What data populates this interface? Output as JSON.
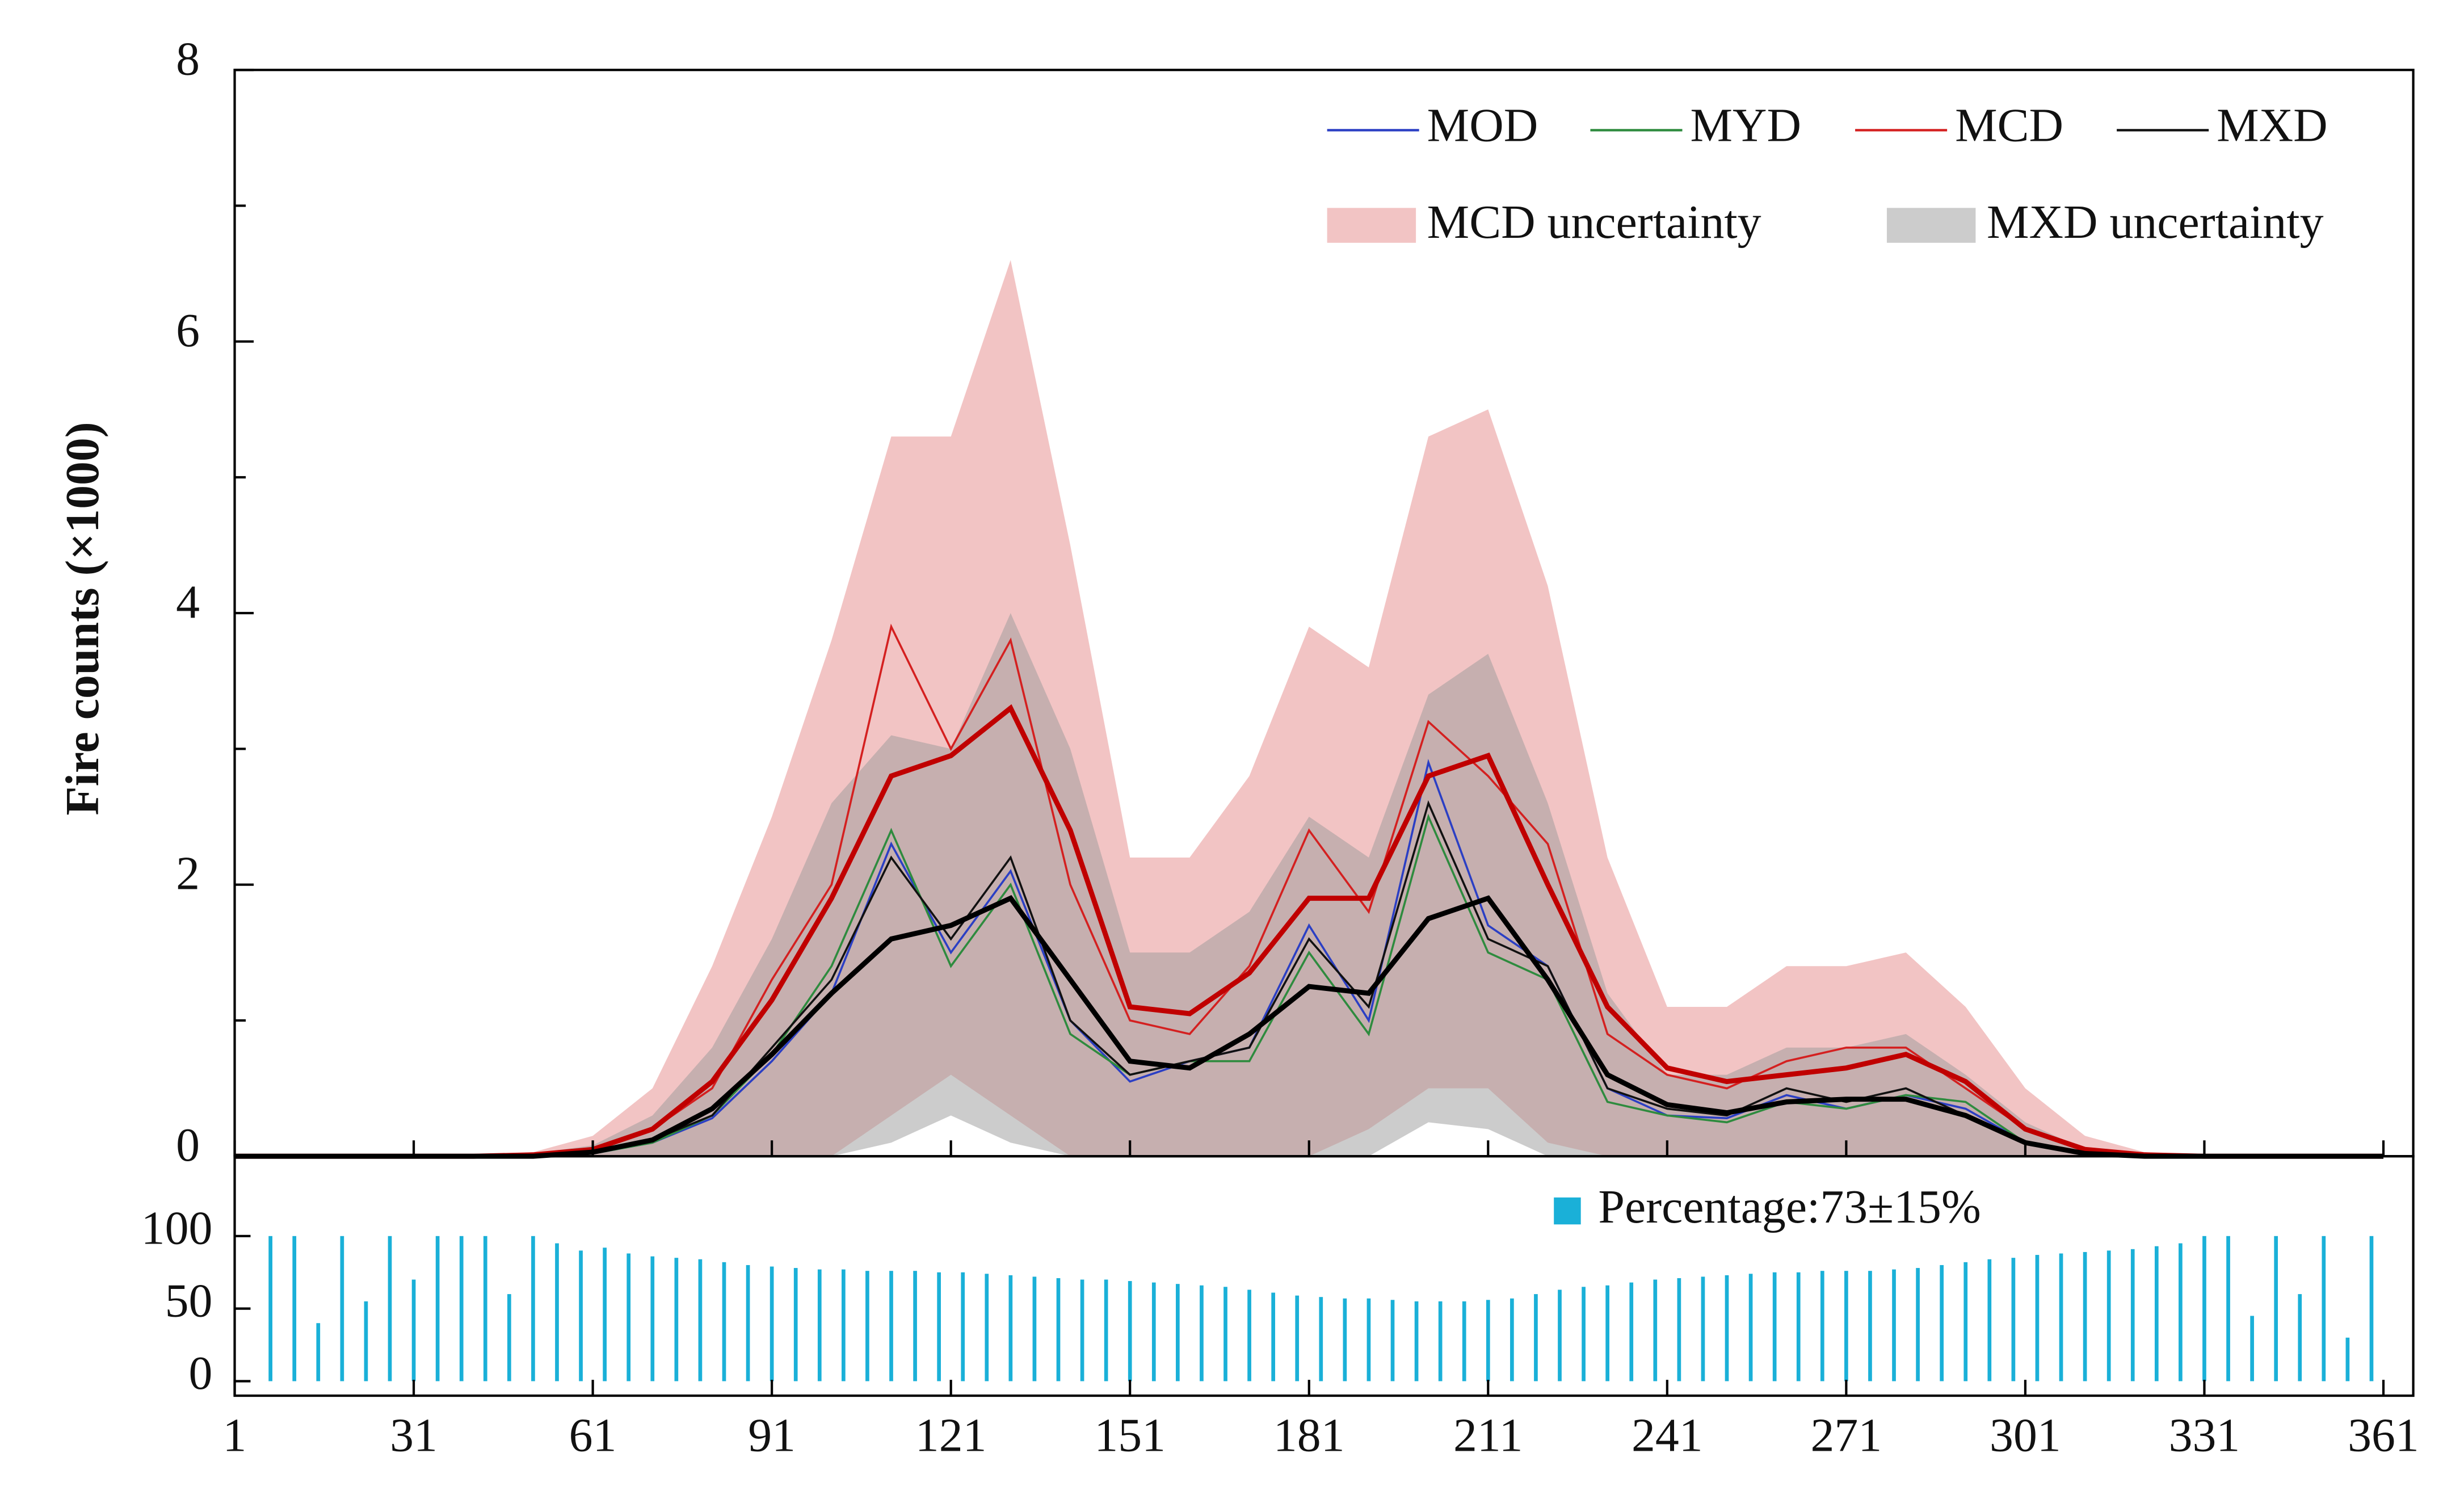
{
  "chart_data": [
    {
      "type": "line",
      "ylabel": "Fire counts (×1000)",
      "xlim": [
        1,
        366
      ],
      "ylim": [
        0,
        8
      ],
      "xticks": [
        1,
        31,
        61,
        91,
        121,
        151,
        181,
        211,
        241,
        271,
        301,
        331,
        361
      ],
      "yticks": [
        0,
        2,
        4,
        6,
        8
      ],
      "yminorticks": [
        1,
        3,
        5,
        7
      ],
      "x": [
        1,
        11,
        21,
        31,
        41,
        51,
        61,
        71,
        81,
        91,
        101,
        111,
        121,
        131,
        141,
        151,
        161,
        171,
        181,
        191,
        201,
        211,
        221,
        231,
        241,
        251,
        261,
        271,
        281,
        291,
        301,
        311,
        321,
        331,
        341,
        351,
        361
      ],
      "bands": [
        {
          "name": "MCD uncertainty",
          "color": "#f2c4c4",
          "upper": [
            0,
            0,
            0,
            0,
            0,
            0.03,
            0.15,
            0.5,
            1.4,
            2.5,
            3.8,
            5.3,
            5.3,
            6.6,
            4.5,
            2.2,
            2.2,
            2.8,
            3.9,
            3.6,
            5.3,
            5.5,
            4.2,
            2.2,
            1.1,
            1.1,
            1.4,
            1.4,
            1.5,
            1.1,
            0.5,
            0.15,
            0.03,
            0,
            0,
            0,
            0
          ],
          "lower": [
            0,
            0,
            0,
            0,
            0,
            0,
            0,
            0,
            0,
            0,
            0,
            0.3,
            0.6,
            0.3,
            0,
            0,
            0,
            0,
            0,
            0.2,
            0.5,
            0.5,
            0.1,
            0,
            0,
            0,
            0,
            0,
            0,
            0,
            0,
            0,
            0,
            0,
            0,
            0,
            0
          ]
        },
        {
          "name": "MXD uncertainty",
          "color": "#9a9a9a",
          "upper": [
            0,
            0,
            0,
            0,
            0,
            0.02,
            0.08,
            0.3,
            0.8,
            1.6,
            2.6,
            3.1,
            3.0,
            4.0,
            3.0,
            1.5,
            1.5,
            1.8,
            2.5,
            2.2,
            3.4,
            3.7,
            2.6,
            1.2,
            0.6,
            0.6,
            0.8,
            0.8,
            0.9,
            0.6,
            0.25,
            0.05,
            0.01,
            0,
            0,
            0,
            0
          ],
          "lower": [
            0,
            0,
            0,
            0,
            0,
            0,
            0,
            0,
            0,
            0,
            0,
            0.1,
            0.3,
            0.1,
            0,
            0,
            0,
            0,
            0,
            0,
            0.25,
            0.2,
            0,
            0,
            0,
            0,
            0,
            0,
            0,
            0,
            0,
            0,
            0,
            0,
            0,
            0,
            0
          ]
        }
      ],
      "series": [
        {
          "name": "MOD",
          "color": "#2b3fc4",
          "values": [
            0,
            0,
            0,
            0,
            0,
            0,
            0.02,
            0.1,
            0.28,
            0.7,
            1.2,
            2.3,
            1.5,
            2.1,
            1.0,
            0.55,
            0.7,
            0.8,
            1.7,
            1.0,
            2.9,
            1.7,
            1.4,
            0.5,
            0.3,
            0.28,
            0.45,
            0.35,
            0.45,
            0.35,
            0.1,
            0.02,
            0,
            0,
            0,
            0,
            0
          ]
        },
        {
          "name": "MYD",
          "color": "#2e8b3e",
          "values": [
            0,
            0,
            0,
            0,
            0,
            0,
            0.02,
            0.1,
            0.3,
            0.75,
            1.4,
            2.4,
            1.4,
            2.0,
            0.9,
            0.6,
            0.7,
            0.7,
            1.5,
            0.9,
            2.5,
            1.5,
            1.3,
            0.4,
            0.3,
            0.25,
            0.4,
            0.35,
            0.45,
            0.4,
            0.1,
            0.02,
            0,
            0,
            0,
            0,
            0
          ]
        },
        {
          "name": "MCD",
          "color": "#d42020",
          "values": [
            0,
            0,
            0,
            0,
            0,
            0.01,
            0.05,
            0.2,
            0.5,
            1.3,
            2.0,
            3.9,
            3.0,
            3.8,
            2.0,
            1.0,
            0.9,
            1.4,
            2.4,
            1.8,
            3.2,
            2.8,
            2.3,
            0.9,
            0.6,
            0.5,
            0.7,
            0.8,
            0.8,
            0.5,
            0.2,
            0.05,
            0.01,
            0,
            0,
            0,
            0
          ]
        },
        {
          "name": "MXD",
          "color": "#111111",
          "values": [
            0,
            0,
            0,
            0,
            0,
            0,
            0.03,
            0.12,
            0.3,
            0.8,
            1.3,
            2.2,
            1.6,
            2.2,
            1.0,
            0.6,
            0.7,
            0.8,
            1.6,
            1.1,
            2.6,
            1.6,
            1.4,
            0.5,
            0.35,
            0.3,
            0.5,
            0.4,
            0.5,
            0.3,
            0.1,
            0.02,
            0,
            0,
            0,
            0,
            0
          ]
        }
      ],
      "smoothed": [
        {
          "color": "#c00000",
          "values": [
            0,
            0,
            0,
            0,
            0,
            0.01,
            0.05,
            0.2,
            0.55,
            1.15,
            1.9,
            2.8,
            2.95,
            3.3,
            2.4,
            1.1,
            1.05,
            1.35,
            1.9,
            1.9,
            2.8,
            2.95,
            2.0,
            1.1,
            0.65,
            0.55,
            0.6,
            0.65,
            0.75,
            0.55,
            0.2,
            0.05,
            0.01,
            0,
            0,
            0,
            0
          ]
        },
        {
          "color": "#000000",
          "values": [
            0,
            0,
            0,
            0,
            0,
            0,
            0.03,
            0.12,
            0.35,
            0.75,
            1.2,
            1.6,
            1.7,
            1.9,
            1.3,
            0.7,
            0.65,
            0.9,
            1.25,
            1.2,
            1.75,
            1.9,
            1.3,
            0.6,
            0.38,
            0.32,
            0.4,
            0.42,
            0.42,
            0.3,
            0.1,
            0.02,
            0,
            0,
            0,
            0,
            0
          ]
        }
      ]
    },
    {
      "type": "bar",
      "legend": "Percentage:73±15%",
      "color": "#1ab0d8",
      "xlim": [
        1,
        366
      ],
      "ylim": [
        -10,
        155
      ],
      "xticks": [
        1,
        31,
        61,
        91,
        121,
        151,
        181,
        211,
        241,
        271,
        301,
        331,
        361
      ],
      "yticks": [
        0,
        50,
        100
      ],
      "x": [
        7,
        11,
        15,
        19,
        23,
        27,
        31,
        35,
        39,
        43,
        47,
        51,
        55,
        59,
        63,
        67,
        71,
        75,
        79,
        83,
        87,
        91,
        95,
        99,
        103,
        107,
        111,
        115,
        119,
        123,
        127,
        131,
        135,
        139,
        143,
        147,
        151,
        155,
        159,
        163,
        167,
        171,
        175,
        179,
        183,
        187,
        191,
        195,
        199,
        203,
        207,
        211,
        215,
        219,
        223,
        227,
        231,
        235,
        239,
        243,
        247,
        251,
        255,
        259,
        263,
        267,
        271,
        275,
        279,
        283,
        287,
        291,
        295,
        299,
        303,
        307,
        311,
        315,
        319,
        323,
        327,
        331,
        335,
        339,
        343,
        347,
        351,
        355,
        359
      ],
      "values": [
        100,
        100,
        40,
        100,
        55,
        100,
        70,
        100,
        100,
        100,
        60,
        100,
        95,
        90,
        92,
        88,
        86,
        85,
        84,
        82,
        80,
        79,
        78,
        77,
        77,
        76,
        76,
        76,
        75,
        75,
        74,
        73,
        72,
        71,
        70,
        70,
        69,
        68,
        67,
        66,
        65,
        63,
        61,
        59,
        58,
        57,
        57,
        56,
        55,
        55,
        55,
        56,
        57,
        60,
        63,
        65,
        66,
        68,
        70,
        71,
        72,
        73,
        74,
        75,
        75,
        76,
        76,
        76,
        77,
        78,
        80,
        82,
        84,
        85,
        87,
        88,
        89,
        90,
        91,
        93,
        95,
        100,
        100,
        45,
        100,
        60,
        100,
        30,
        100
      ]
    }
  ]
}
